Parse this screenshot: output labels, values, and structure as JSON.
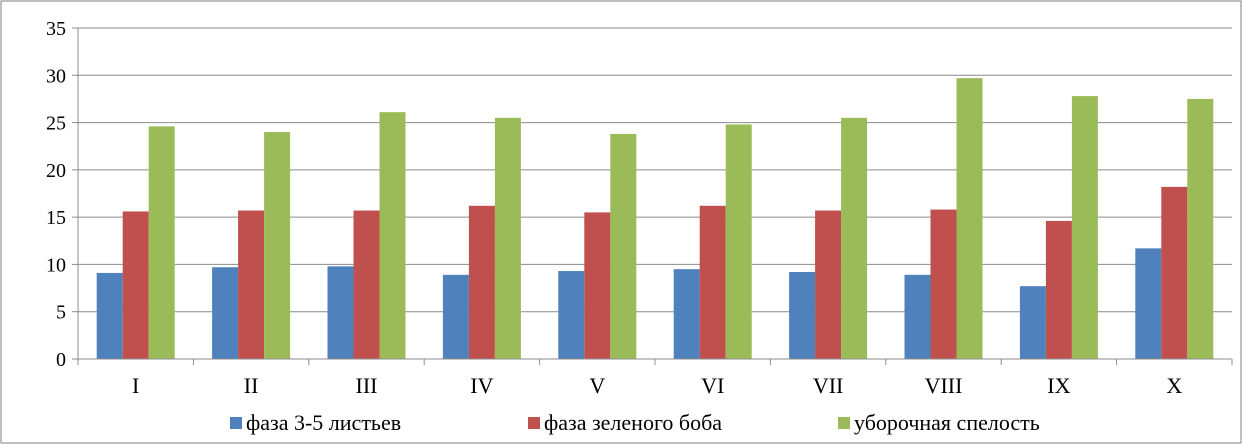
{
  "chart_data": {
    "type": "bar",
    "title": "",
    "xlabel": "",
    "ylabel": "",
    "categories": [
      "I",
      "II",
      "III",
      "IV",
      "V",
      "VI",
      "VII",
      "VIII",
      "IX",
      "X"
    ],
    "series": [
      {
        "name": "фаза 3-5 листьев",
        "color": "#4F81BD",
        "values": [
          9.1,
          9.7,
          9.8,
          8.9,
          9.3,
          9.5,
          9.2,
          8.9,
          7.7,
          11.7
        ]
      },
      {
        "name": "фаза зеленого боба",
        "color": "#C0504D",
        "values": [
          15.6,
          15.7,
          15.7,
          16.2,
          15.5,
          16.2,
          15.7,
          15.8,
          14.6,
          18.2
        ]
      },
      {
        "name": "уборочная спелость",
        "color": "#9BBB59",
        "values": [
          24.6,
          24.0,
          26.1,
          25.5,
          23.8,
          24.8,
          25.5,
          29.7,
          27.8,
          27.5
        ]
      }
    ],
    "ylim": [
      0,
      35
    ],
    "yticks": [
      0,
      5,
      10,
      15,
      20,
      25,
      30,
      35
    ],
    "grid": true,
    "legend_position": "bottom"
  }
}
